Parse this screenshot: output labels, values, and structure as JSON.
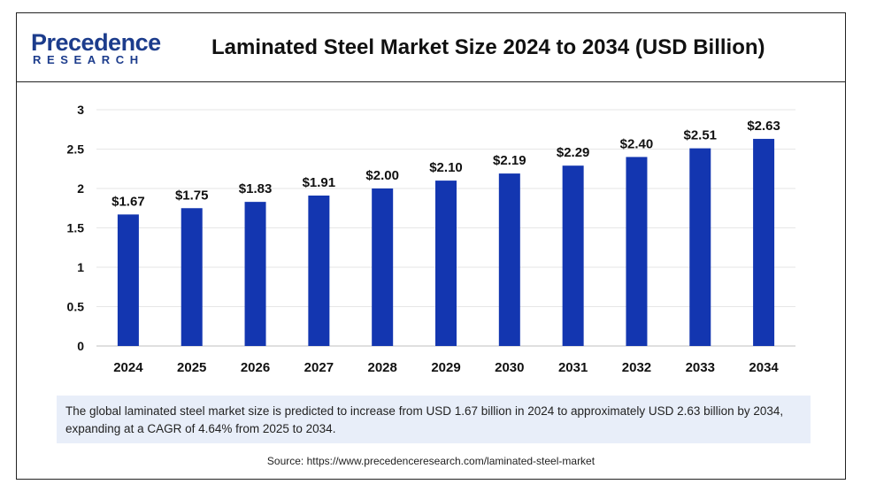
{
  "logo": {
    "top": "Precedence",
    "bottom": "RESEARCH"
  },
  "title": "Laminated Steel Market Size 2024 to 2034 (USD Billion)",
  "note": "The global laminated steel market size is predicted to increase from USD 1.67 billion in 2024 to approximately USD 2.63 billion by 2034, expanding at a CAGR of 4.64% from 2025 to 2034.",
  "source": "Source: https://www.precedenceresearch.com/laminated-steel-market",
  "colors": {
    "bar": "#1336b0",
    "brand": "#1c3c8c"
  },
  "chart_data": {
    "type": "bar",
    "title": "Laminated Steel Market Size 2024 to 2034 (USD Billion)",
    "xlabel": "",
    "ylabel": "",
    "categories": [
      "2024",
      "2025",
      "2026",
      "2027",
      "2028",
      "2029",
      "2030",
      "2031",
      "2032",
      "2033",
      "2034"
    ],
    "values": [
      1.67,
      1.75,
      1.83,
      1.91,
      2.0,
      2.1,
      2.19,
      2.29,
      2.4,
      2.51,
      2.63
    ],
    "data_labels": [
      "$1.67",
      "$1.75",
      "$1.83",
      "$1.91",
      "$2.00",
      "$2.10",
      "$2.19",
      "$2.29",
      "$2.40",
      "$2.51",
      "$2.63"
    ],
    "yticks": [
      "0",
      "0.5",
      "1",
      "1.5",
      "2",
      "2.5",
      "3"
    ],
    "ylim": [
      0,
      3
    ],
    "grid": true,
    "legend": "none"
  }
}
